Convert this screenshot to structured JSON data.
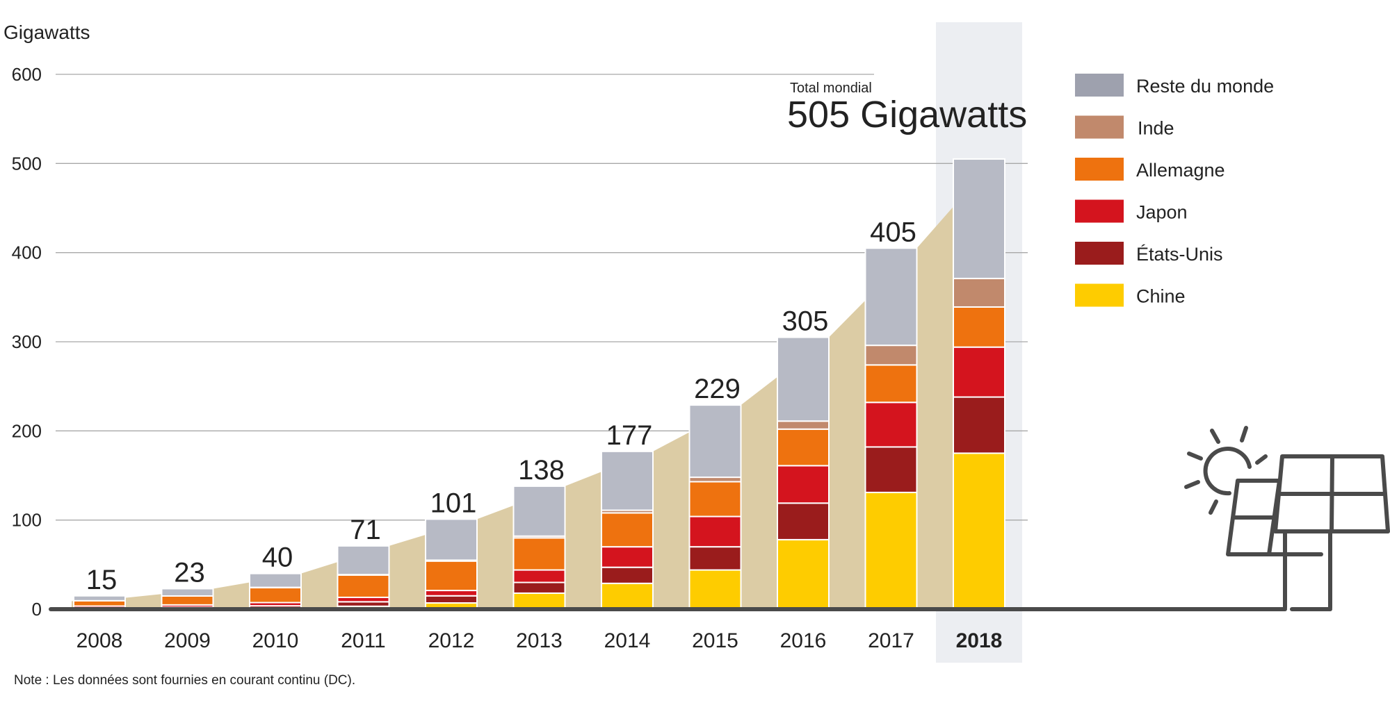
{
  "chart_data": {
    "type": "bar",
    "stacked": true,
    "ylabel": "Gigawatts",
    "ylim": [
      0,
      600
    ],
    "yticks": [
      0,
      100,
      200,
      300,
      400,
      500,
      600
    ],
    "grid": true,
    "categories": [
      "2008",
      "2009",
      "2010",
      "2011",
      "2012",
      "2013",
      "2014",
      "2015",
      "2016",
      "2017",
      "2018"
    ],
    "highlight_category": "2018",
    "totals": [
      15,
      23,
      40,
      71,
      101,
      138,
      177,
      229,
      305,
      405,
      505
    ],
    "series": [
      {
        "name": "Chine",
        "color": "#fecc00",
        "values": [
          0.3,
          0.6,
          1,
          3.3,
          7,
          18,
          29,
          44,
          78,
          131,
          175
        ]
      },
      {
        "name": "États-Unis",
        "color": "#9a1c1c",
        "values": [
          1.2,
          1.6,
          2.8,
          5,
          8,
          12,
          18,
          26,
          41,
          51,
          63
        ]
      },
      {
        "name": "Japon",
        "color": "#d4141e",
        "values": [
          2,
          2.6,
          3.6,
          5,
          6,
          14,
          23,
          34,
          42,
          50,
          56
        ]
      },
      {
        "name": "Allemagne",
        "color": "#ee720f",
        "values": [
          6,
          10,
          17,
          25,
          33,
          36,
          38,
          39,
          41,
          42,
          45
        ]
      },
      {
        "name": "Inde",
        "color": "#c1896c",
        "values": [
          0,
          0,
          0.1,
          0.5,
          1,
          2,
          3,
          5,
          9,
          22,
          32
        ]
      },
      {
        "name": "Reste du monde",
        "color": "#b7bac5",
        "values": [
          5.5,
          8.2,
          15.5,
          32.2,
          46,
          56,
          66,
          81,
          94,
          109,
          134
        ]
      }
    ],
    "legend_order": [
      "Reste du monde",
      "Inde",
      "Allemagne",
      "Japon",
      "États-Unis",
      "Chine"
    ],
    "legend_swatch_colors": {
      "Reste du monde": "#9ea1ae"
    },
    "annotation": {
      "line1": "Total mondial",
      "line2": "505 Gigawatts"
    },
    "note": "Note : Les données sont fournies en courant continu (DC).",
    "background_area_color": "#dccca5",
    "highlight_band_color": "#eceef2",
    "icon": "solar-panel-sun-icon"
  }
}
